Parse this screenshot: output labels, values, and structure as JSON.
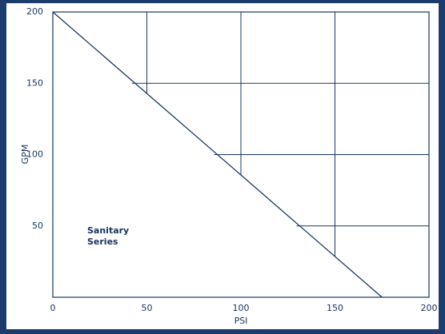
{
  "chart_data": {
    "type": "line",
    "x_label": "PSI",
    "y_label": "GPM",
    "annotation": [
      "Sanitary",
      "Series"
    ],
    "series": [
      {
        "name": "Sanitary Series",
        "color": "#1a3563",
        "x": [
          0,
          175
        ],
        "values": [
          200,
          0
        ]
      }
    ],
    "xlim": [
      0,
      200
    ],
    "xticks": [
      0,
      50,
      100,
      150,
      200
    ],
    "ylim": [
      0,
      200
    ],
    "yticks": [
      50,
      100,
      150,
      200
    ],
    "grid": true
  }
}
